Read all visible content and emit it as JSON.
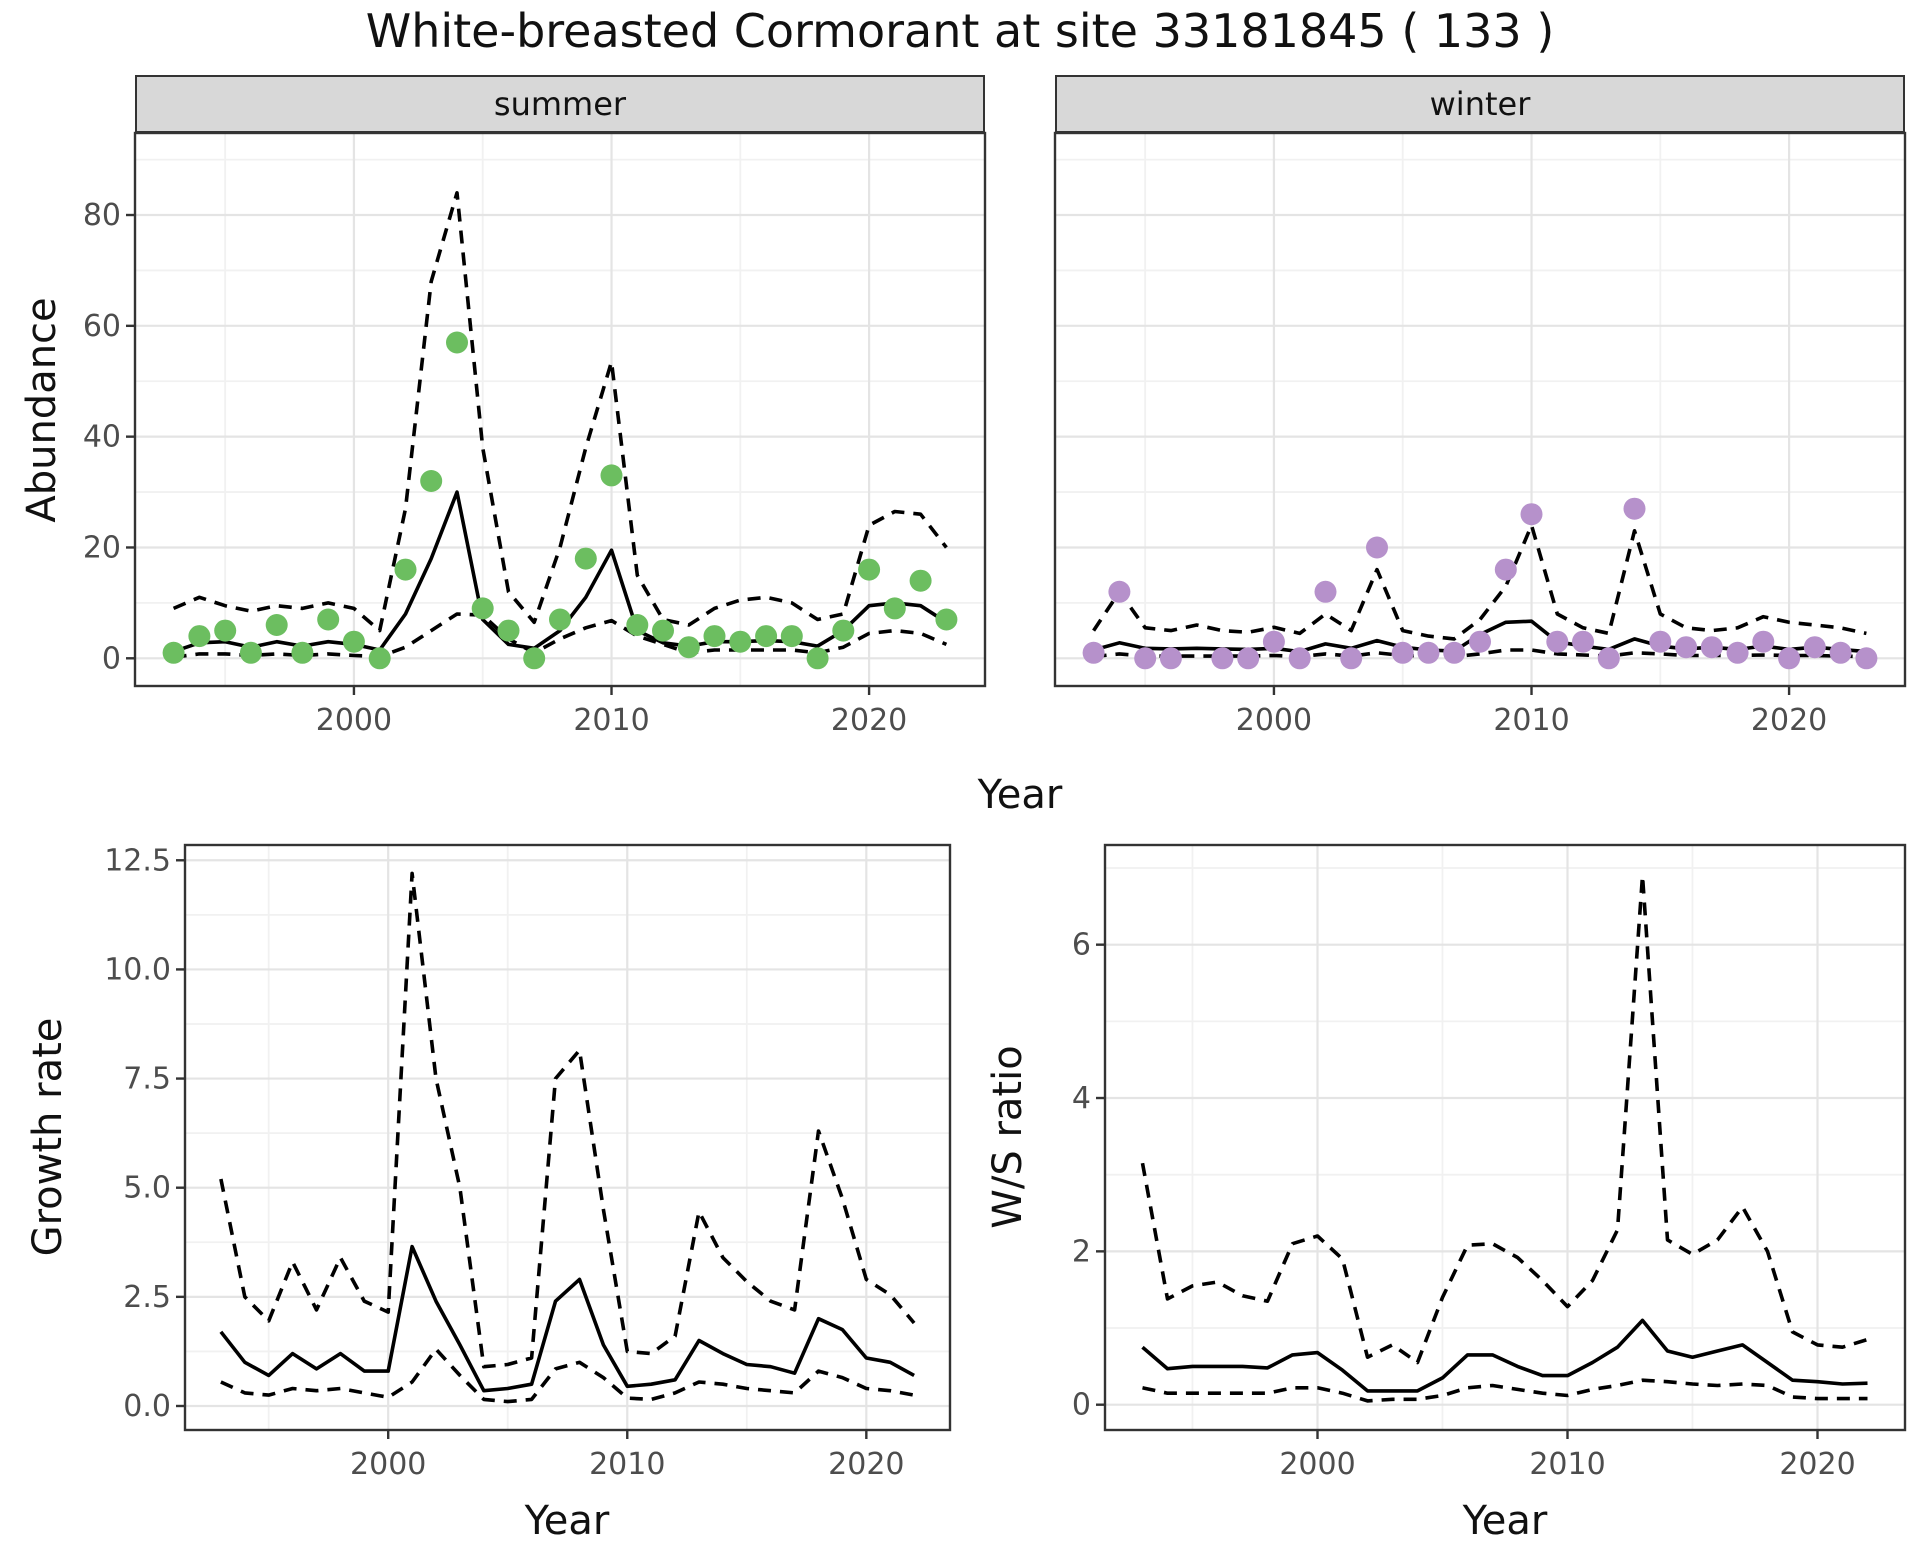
{
  "title": "White-breasted Cormorant at site 33181845 ( 133 )",
  "facets": [
    "summer",
    "winter"
  ],
  "axes": {
    "x_label": "Year",
    "abundance_label": "Abundance",
    "growth_label": "Growth rate",
    "ws_label": "W/S ratio"
  },
  "colors": {
    "summer_point": "#6cbe60",
    "winter_point": "#b691cb",
    "line": "#000000",
    "grid_major": "#e4e4e4",
    "grid_minor": "#f1f1f1",
    "panel_border": "#333333",
    "strip_bg": "#d8d8d8",
    "tick_text": "#4d4d4d"
  },
  "chart_data": [
    {
      "id": "abundance-summer",
      "type": "line",
      "facet": "summer",
      "title": "",
      "xlabel": "Year",
      "ylabel": "Abundance",
      "grid": true,
      "legend": "none",
      "xlim": [
        1991.5,
        2024.5
      ],
      "ylim": [
        -5,
        94.8
      ],
      "xticks": [
        {
          "v": 2000,
          "label": "2000"
        },
        {
          "v": 2010,
          "label": "2010"
        },
        {
          "v": 2020,
          "label": "2020"
        }
      ],
      "yticks": [
        {
          "v": 0,
          "label": "0"
        },
        {
          "v": 20,
          "label": "20"
        },
        {
          "v": 40,
          "label": "40"
        },
        {
          "v": 60,
          "label": "60"
        },
        {
          "v": 80,
          "label": "80"
        }
      ],
      "x": [
        1993,
        1994,
        1995,
        1996,
        1997,
        1998,
        1999,
        2000,
        2001,
        2002,
        2003,
        2004,
        2005,
        2006,
        2007,
        2008,
        2009,
        2010,
        2011,
        2012,
        2013,
        2014,
        2015,
        2016,
        2017,
        2018,
        2019,
        2020,
        2021,
        2022,
        2023
      ],
      "points": {
        "name": "observed-count",
        "color": "#6cbe60",
        "values": [
          1,
          4,
          5,
          1,
          6,
          1,
          7,
          3,
          0,
          16,
          32,
          57,
          9,
          5,
          0,
          7,
          18,
          33,
          6,
          5,
          2,
          4,
          3,
          4,
          4,
          0,
          5,
          16,
          9,
          14,
          7
        ]
      },
      "series": [
        {
          "name": "median",
          "style": "solid",
          "values": [
            1.2,
            2.8,
            3,
            2,
            3,
            2.2,
            3,
            2.5,
            1.5,
            8,
            18,
            30,
            7,
            2.5,
            1.8,
            5,
            11,
            19.5,
            5,
            2.8,
            2.2,
            3,
            3,
            3.2,
            3,
            2.2,
            5,
            9.5,
            10,
            9.5,
            6.5
          ]
        },
        {
          "name": "upper-ci",
          "style": "dashed",
          "values": [
            9,
            11,
            9.5,
            8.5,
            9.5,
            9,
            10,
            9,
            5,
            27,
            68,
            84,
            38,
            12,
            6.5,
            20,
            38,
            53.5,
            15,
            7,
            6,
            9,
            10.5,
            11,
            10,
            7,
            8,
            24,
            26.5,
            26,
            20
          ]
        },
        {
          "name": "lower-ci",
          "style": "dashed",
          "values": [
            0.2,
            0.8,
            0.8,
            0.5,
            0.8,
            0.5,
            0.8,
            0.5,
            0.3,
            2,
            5,
            8,
            7.8,
            3.5,
            1,
            3.5,
            5.5,
            6.8,
            4,
            2.5,
            1,
            1.5,
            1.5,
            1.5,
            1.5,
            1,
            2,
            4.5,
            5,
            4.5,
            2.5
          ]
        }
      ]
    },
    {
      "id": "abundance-winter",
      "type": "line",
      "facet": "winter",
      "title": "",
      "xlabel": "Year",
      "ylabel": "Abundance",
      "grid": true,
      "legend": "none",
      "xlim": [
        1991.5,
        2024.5
      ],
      "ylim": [
        -5,
        94.8
      ],
      "xticks": [
        {
          "v": 2000,
          "label": "2000"
        },
        {
          "v": 2010,
          "label": "2010"
        },
        {
          "v": 2020,
          "label": "2020"
        }
      ],
      "yticks": [
        {
          "v": 0,
          "label": "0"
        },
        {
          "v": 20,
          "label": "20"
        },
        {
          "v": 40,
          "label": "40"
        },
        {
          "v": 60,
          "label": "60"
        },
        {
          "v": 80,
          "label": "80"
        }
      ],
      "x": [
        1993,
        1994,
        1995,
        1996,
        1997,
        1998,
        1999,
        2000,
        2001,
        2002,
        2003,
        2004,
        2005,
        2006,
        2007,
        2008,
        2009,
        2010,
        2011,
        2012,
        2013,
        2014,
        2015,
        2016,
        2017,
        2018,
        2019,
        2020,
        2021,
        2022,
        2023
      ],
      "points": {
        "name": "observed-count",
        "color": "#b691cb",
        "values": [
          1,
          12,
          0,
          0,
          null,
          0,
          0,
          3,
          0,
          12,
          0,
          20,
          1,
          1,
          1,
          3,
          16,
          26,
          3,
          3,
          0,
          27,
          3,
          2,
          2,
          1,
          3,
          0,
          2,
          1,
          0
        ]
      },
      "series": [
        {
          "name": "median",
          "style": "solid",
          "values": [
            1.5,
            2.8,
            1.8,
            1.7,
            1.8,
            1.7,
            1.6,
            1.8,
            1.2,
            2.6,
            1.8,
            3.2,
            2,
            1.5,
            1.3,
            4.3,
            6.5,
            6.7,
            3,
            2.2,
            1.6,
            3.5,
            2.2,
            1.7,
            2,
            1.6,
            2.2,
            1.6,
            2,
            1.6,
            1.2
          ]
        },
        {
          "name": "upper-ci",
          "style": "dashed",
          "values": [
            5,
            12,
            5.5,
            5,
            6,
            5,
            4.7,
            5.6,
            4.5,
            8,
            5,
            16,
            5,
            4,
            3.5,
            7,
            13,
            24,
            8,
            5.5,
            4.5,
            23,
            8,
            5.5,
            5,
            5.5,
            7.5,
            6.5,
            6,
            5.5,
            4.5
          ]
        },
        {
          "name": "lower-ci",
          "style": "dashed",
          "values": [
            0.3,
            0.8,
            0.4,
            0.4,
            0.4,
            0.4,
            0.4,
            0.5,
            0.3,
            0.8,
            0.4,
            1,
            0.5,
            0.4,
            0.3,
            0.8,
            1.5,
            1.5,
            0.8,
            0.6,
            0.4,
            1,
            0.8,
            0.5,
            0.5,
            0.5,
            0.6,
            0.5,
            0.5,
            0.4,
            0.3
          ]
        }
      ]
    },
    {
      "id": "growth-rate",
      "type": "line",
      "facet": null,
      "title": "",
      "xlabel": "Year",
      "ylabel": "Growth rate",
      "grid": true,
      "legend": "none",
      "xlim": [
        1991.5,
        2023.5
      ],
      "ylim": [
        -0.55,
        12.85
      ],
      "xticks": [
        {
          "v": 2000,
          "label": "2000"
        },
        {
          "v": 2010,
          "label": "2010"
        },
        {
          "v": 2020,
          "label": "2020"
        }
      ],
      "yticks": [
        {
          "v": 0,
          "label": "0.0"
        },
        {
          "v": 2.5,
          "label": "2.5"
        },
        {
          "v": 5,
          "label": "5.0"
        },
        {
          "v": 7.5,
          "label": "7.5"
        },
        {
          "v": 10,
          "label": "10.0"
        },
        {
          "v": 12.5,
          "label": "12.5"
        }
      ],
      "x": [
        1993,
        1994,
        1995,
        1996,
        1997,
        1998,
        1999,
        2000,
        2001,
        2002,
        2003,
        2004,
        2005,
        2006,
        2007,
        2008,
        2009,
        2010,
        2011,
        2012,
        2013,
        2014,
        2015,
        2016,
        2017,
        2018,
        2019,
        2020,
        2021,
        2022
      ],
      "points": null,
      "series": [
        {
          "name": "median",
          "style": "solid",
          "values": [
            1.7,
            1.0,
            0.7,
            1.2,
            0.85,
            1.2,
            0.8,
            0.8,
            3.65,
            2.4,
            1.4,
            0.35,
            0.4,
            0.5,
            2.4,
            2.9,
            1.4,
            0.45,
            0.5,
            0.6,
            1.5,
            1.2,
            0.95,
            0.9,
            0.75,
            2.0,
            1.75,
            1.1,
            1.0,
            0.7
          ]
        },
        {
          "name": "upper-ci",
          "style": "dashed",
          "values": [
            5.2,
            2.5,
            1.95,
            3.3,
            2.2,
            3.4,
            2.4,
            2.15,
            12.2,
            7.5,
            5.0,
            0.9,
            0.95,
            1.1,
            7.5,
            8.15,
            4.5,
            1.25,
            1.2,
            1.6,
            4.45,
            3.4,
            2.85,
            2.4,
            2.2,
            6.3,
            4.75,
            2.9,
            2.55,
            1.9
          ]
        },
        {
          "name": "lower-ci",
          "style": "dashed",
          "values": [
            0.55,
            0.3,
            0.25,
            0.4,
            0.35,
            0.4,
            0.3,
            0.2,
            0.55,
            1.3,
            0.7,
            0.15,
            0.1,
            0.15,
            0.85,
            1.0,
            0.65,
            0.18,
            0.15,
            0.3,
            0.55,
            0.5,
            0.4,
            0.35,
            0.3,
            0.8,
            0.65,
            0.4,
            0.35,
            0.25
          ]
        }
      ]
    },
    {
      "id": "ws-ratio",
      "type": "line",
      "facet": null,
      "title": "",
      "xlabel": "Year",
      "ylabel": "W/S ratio",
      "grid": true,
      "legend": "none",
      "xlim": [
        1991.5,
        2023.5
      ],
      "ylim": [
        -0.33,
        7.3
      ],
      "xticks": [
        {
          "v": 2000,
          "label": "2000"
        },
        {
          "v": 2010,
          "label": "2010"
        },
        {
          "v": 2020,
          "label": "2020"
        }
      ],
      "yticks": [
        {
          "v": 0,
          "label": "0"
        },
        {
          "v": 2,
          "label": "2"
        },
        {
          "v": 4,
          "label": "4"
        },
        {
          "v": 6,
          "label": "6"
        }
      ],
      "x": [
        1993,
        1994,
        1995,
        1996,
        1997,
        1998,
        1999,
        2000,
        2001,
        2002,
        2003,
        2004,
        2005,
        2006,
        2007,
        2008,
        2009,
        2010,
        2011,
        2012,
        2013,
        2014,
        2015,
        2016,
        2017,
        2018,
        2019,
        2020,
        2021,
        2022
      ],
      "points": null,
      "series": [
        {
          "name": "median",
          "style": "solid",
          "values": [
            0.75,
            0.47,
            0.5,
            0.5,
            0.5,
            0.48,
            0.65,
            0.68,
            0.45,
            0.18,
            0.18,
            0.18,
            0.35,
            0.65,
            0.65,
            0.5,
            0.38,
            0.38,
            0.55,
            0.75,
            1.1,
            0.7,
            0.62,
            0.7,
            0.78,
            0.55,
            0.32,
            0.3,
            0.27,
            0.28
          ]
        },
        {
          "name": "upper-ci",
          "style": "dashed",
          "values": [
            3.15,
            1.38,
            1.55,
            1.6,
            1.42,
            1.35,
            2.1,
            2.2,
            1.9,
            0.62,
            0.78,
            0.55,
            1.4,
            2.08,
            2.1,
            1.92,
            1.62,
            1.28,
            1.62,
            2.28,
            6.9,
            2.15,
            1.96,
            2.15,
            2.58,
            2.0,
            0.95,
            0.78,
            0.75,
            0.85
          ]
        },
        {
          "name": "lower-ci",
          "style": "dashed",
          "values": [
            0.22,
            0.15,
            0.15,
            0.15,
            0.15,
            0.15,
            0.22,
            0.22,
            0.15,
            0.05,
            0.07,
            0.07,
            0.12,
            0.22,
            0.25,
            0.2,
            0.15,
            0.12,
            0.2,
            0.25,
            0.32,
            0.3,
            0.27,
            0.25,
            0.27,
            0.25,
            0.1,
            0.08,
            0.08,
            0.08
          ]
        }
      ]
    }
  ]
}
